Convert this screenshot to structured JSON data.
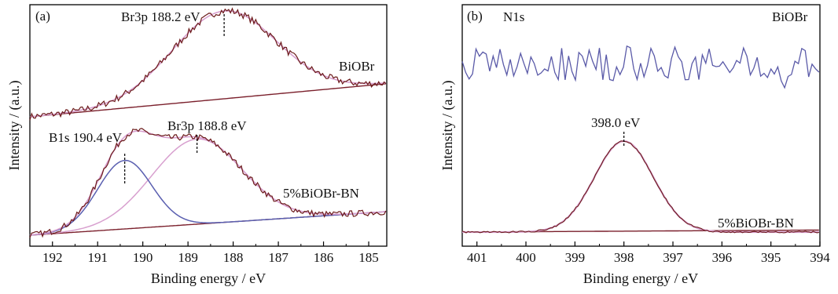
{
  "chart_data": [
    {
      "type": "line",
      "panel_label": "(a)",
      "xlabel": "Binding energy / eV",
      "ylabel": "Intensity / (a.u.)",
      "xlim": [
        192.5,
        184.6
      ],
      "x_reversed": true,
      "xticks": [
        192,
        191,
        190,
        189,
        188,
        187,
        186,
        185
      ],
      "series_labels": [
        "BiOBr",
        "5%BiOBr-BN"
      ],
      "annotations": [
        {
          "text": "Br3p 188.2 eV",
          "x": 188.2
        },
        {
          "text": "B1s 190.4 eV",
          "x": 190.4
        },
        {
          "text": "Br3p 188.8 eV",
          "x": 188.8
        }
      ],
      "colors": {
        "raw": "#6b1a1a",
        "fit": "#d8a0cf",
        "component": "#5a5fb0",
        "baseline": "#7a1f2b"
      },
      "curves": {
        "biobr_baseline": {
          "x": [
            192.5,
            184.6
          ],
          "y": [
            0.0,
            0.47
          ]
        },
        "biobr_peak": {
          "center": 188.2,
          "height": 1.0,
          "sigma": 1.15
        },
        "bn_baseline": {
          "x": [
            192.5,
            184.6
          ],
          "y": [
            0.0,
            0.43
          ]
        },
        "bn_b1s": {
          "center": 190.4,
          "height": 0.95,
          "sigma": 0.6
        },
        "bn_br3p": {
          "center": 188.8,
          "height": 1.18,
          "sigma": 1.0
        }
      }
    },
    {
      "type": "line",
      "panel_label": "(b)",
      "core_level": "N1s",
      "xlabel": "Binding energy / eV",
      "ylabel": "Intensity / (a.u.)",
      "xlim": [
        401.3,
        394.0
      ],
      "x_reversed": true,
      "xticks": [
        401,
        400,
        399,
        398,
        397,
        396,
        395,
        394
      ],
      "series_labels": [
        "BiOBr",
        "5%BiOBr-BN"
      ],
      "annotations": [
        {
          "text": "398.0 eV",
          "x": 398.0
        }
      ],
      "colors": {
        "noise": "#5a5aa8",
        "raw": "#6b1a1a",
        "fit": "#d8a0cf",
        "baseline": "#7a1f2b"
      },
      "curves": {
        "bn_peak": {
          "center": 398.0,
          "height": 1.0,
          "sigma": 0.6
        },
        "bn_baseline": {
          "x": [
            401.3,
            394.0
          ],
          "y": [
            0.0,
            0.0
          ]
        }
      }
    }
  ]
}
